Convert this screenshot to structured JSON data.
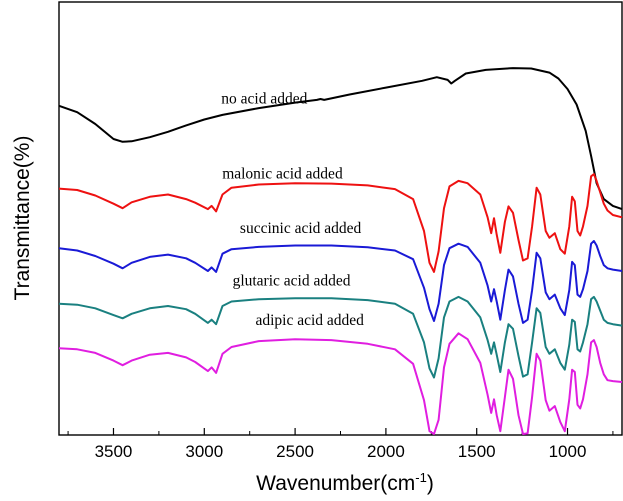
{
  "chart_data": {
    "type": "line",
    "xlabel": "Wavenumber(cm",
    "xlabel_sup": "-1",
    "xlabel_close": ")",
    "ylabel": "Transmittance(%)",
    "xlim": [
      3800,
      700
    ],
    "x_reversed": true,
    "y_ticks_shown": false,
    "grid": false,
    "xticks": [
      3500,
      3000,
      2500,
      2000,
      1500,
      1000
    ],
    "series": [
      {
        "name": "no acid added",
        "color": "#000000",
        "label_anchor_x": 3000,
        "points": [
          [
            3800,
            2.15
          ],
          [
            3700,
            2.29
          ],
          [
            3600,
            2.55
          ],
          [
            3500,
            2.88
          ],
          [
            3450,
            2.94
          ],
          [
            3400,
            2.93
          ],
          [
            3300,
            2.84
          ],
          [
            3200,
            2.72
          ],
          [
            3100,
            2.58
          ],
          [
            3000,
            2.45
          ],
          [
            2900,
            2.35
          ],
          [
            2700,
            2.2
          ],
          [
            2500,
            2.08
          ],
          [
            2380,
            2.02
          ],
          [
            2360,
            2.0
          ],
          [
            2340,
            2.02
          ],
          [
            2200,
            1.9
          ],
          [
            2000,
            1.75
          ],
          [
            1800,
            1.6
          ],
          [
            1720,
            1.52
          ],
          [
            1660,
            1.58
          ],
          [
            1640,
            1.66
          ],
          [
            1620,
            1.6
          ],
          [
            1560,
            1.44
          ],
          [
            1450,
            1.36
          ],
          [
            1300,
            1.32
          ],
          [
            1200,
            1.33
          ],
          [
            1100,
            1.42
          ],
          [
            1050,
            1.55
          ],
          [
            1000,
            1.78
          ],
          [
            950,
            2.12
          ],
          [
            900,
            2.7
          ],
          [
            870,
            3.25
          ],
          [
            840,
            3.85
          ],
          [
            800,
            4.2
          ],
          [
            750,
            4.35
          ],
          [
            700,
            4.42
          ]
        ]
      },
      {
        "name": "malonic acid added",
        "color": "#ee1111",
        "label_anchor_x": 2900,
        "points": [
          [
            3800,
            3.97
          ],
          [
            3700,
            4.0
          ],
          [
            3600,
            4.12
          ],
          [
            3500,
            4.3
          ],
          [
            3450,
            4.4
          ],
          [
            3400,
            4.27
          ],
          [
            3300,
            4.15
          ],
          [
            3200,
            4.1
          ],
          [
            3100,
            4.2
          ],
          [
            3050,
            4.28
          ],
          [
            2980,
            4.42
          ],
          [
            2960,
            4.35
          ],
          [
            2935,
            4.47
          ],
          [
            2900,
            4.1
          ],
          [
            2850,
            3.95
          ],
          [
            2700,
            3.88
          ],
          [
            2500,
            3.85
          ],
          [
            2300,
            3.86
          ],
          [
            2100,
            3.9
          ],
          [
            1950,
            3.98
          ],
          [
            1850,
            4.2
          ],
          [
            1790,
            4.9
          ],
          [
            1760,
            5.6
          ],
          [
            1735,
            5.8
          ],
          [
            1710,
            5.35
          ],
          [
            1680,
            4.4
          ],
          [
            1650,
            3.92
          ],
          [
            1600,
            3.8
          ],
          [
            1550,
            3.85
          ],
          [
            1480,
            4.1
          ],
          [
            1440,
            4.6
          ],
          [
            1420,
            4.95
          ],
          [
            1405,
            4.62
          ],
          [
            1390,
            4.98
          ],
          [
            1370,
            5.38
          ],
          [
            1345,
            4.7
          ],
          [
            1325,
            4.36
          ],
          [
            1300,
            4.5
          ],
          [
            1270,
            5.1
          ],
          [
            1245,
            5.55
          ],
          [
            1220,
            5.5
          ],
          [
            1195,
            4.8
          ],
          [
            1170,
            3.95
          ],
          [
            1150,
            4.1
          ],
          [
            1120,
            4.9
          ],
          [
            1100,
            5.05
          ],
          [
            1070,
            4.95
          ],
          [
            1040,
            5.3
          ],
          [
            1015,
            5.4
          ],
          [
            990,
            4.8
          ],
          [
            975,
            4.15
          ],
          [
            960,
            4.25
          ],
          [
            945,
            4.9
          ],
          [
            930,
            5.0
          ],
          [
            915,
            4.8
          ],
          [
            890,
            4.35
          ],
          [
            870,
            3.7
          ],
          [
            855,
            3.65
          ],
          [
            840,
            3.8
          ],
          [
            820,
            4.05
          ],
          [
            800,
            4.3
          ],
          [
            780,
            4.45
          ],
          [
            750,
            4.55
          ],
          [
            700,
            4.6
          ]
        ]
      },
      {
        "name": "succinic acid added",
        "color": "#1a1ad6",
        "label_anchor_x": 2800,
        "points": [
          [
            3800,
            5.28
          ],
          [
            3700,
            5.33
          ],
          [
            3600,
            5.45
          ],
          [
            3500,
            5.62
          ],
          [
            3450,
            5.72
          ],
          [
            3400,
            5.6
          ],
          [
            3300,
            5.47
          ],
          [
            3200,
            5.42
          ],
          [
            3100,
            5.5
          ],
          [
            3050,
            5.6
          ],
          [
            2980,
            5.78
          ],
          [
            2960,
            5.7
          ],
          [
            2935,
            5.8
          ],
          [
            2900,
            5.4
          ],
          [
            2850,
            5.3
          ],
          [
            2700,
            5.25
          ],
          [
            2500,
            5.22
          ],
          [
            2300,
            5.22
          ],
          [
            2100,
            5.26
          ],
          [
            1950,
            5.33
          ],
          [
            1850,
            5.52
          ],
          [
            1790,
            6.15
          ],
          [
            1760,
            6.62
          ],
          [
            1735,
            6.88
          ],
          [
            1710,
            6.5
          ],
          [
            1680,
            5.65
          ],
          [
            1650,
            5.28
          ],
          [
            1600,
            5.18
          ],
          [
            1550,
            5.25
          ],
          [
            1480,
            5.6
          ],
          [
            1440,
            6.1
          ],
          [
            1420,
            6.45
          ],
          [
            1405,
            6.18
          ],
          [
            1390,
            6.45
          ],
          [
            1370,
            6.85
          ],
          [
            1345,
            6.2
          ],
          [
            1325,
            5.75
          ],
          [
            1300,
            5.9
          ],
          [
            1270,
            6.5
          ],
          [
            1245,
            6.92
          ],
          [
            1220,
            6.85
          ],
          [
            1195,
            6.2
          ],
          [
            1170,
            5.38
          ],
          [
            1150,
            5.5
          ],
          [
            1120,
            6.25
          ],
          [
            1100,
            6.4
          ],
          [
            1070,
            6.3
          ],
          [
            1040,
            6.6
          ],
          [
            1015,
            6.75
          ],
          [
            990,
            6.2
          ],
          [
            975,
            5.58
          ],
          [
            960,
            5.65
          ],
          [
            945,
            6.3
          ],
          [
            930,
            6.35
          ],
          [
            915,
            6.18
          ],
          [
            890,
            5.78
          ],
          [
            870,
            5.18
          ],
          [
            855,
            5.12
          ],
          [
            840,
            5.22
          ],
          [
            820,
            5.45
          ],
          [
            800,
            5.65
          ],
          [
            780,
            5.72
          ],
          [
            750,
            5.75
          ],
          [
            700,
            5.78
          ]
        ]
      },
      {
        "name": "glutaric acid added",
        "color": "#1a8080",
        "label_anchor_x": 2850,
        "points": [
          [
            3800,
            6.5
          ],
          [
            3700,
            6.52
          ],
          [
            3600,
            6.6
          ],
          [
            3500,
            6.75
          ],
          [
            3450,
            6.82
          ],
          [
            3400,
            6.72
          ],
          [
            3300,
            6.6
          ],
          [
            3200,
            6.55
          ],
          [
            3100,
            6.62
          ],
          [
            3050,
            6.72
          ],
          [
            2980,
            6.92
          ],
          [
            2960,
            6.85
          ],
          [
            2935,
            6.95
          ],
          [
            2900,
            6.55
          ],
          [
            2850,
            6.45
          ],
          [
            2700,
            6.4
          ],
          [
            2500,
            6.38
          ],
          [
            2300,
            6.38
          ],
          [
            2100,
            6.42
          ],
          [
            1950,
            6.5
          ],
          [
            1850,
            6.72
          ],
          [
            1790,
            7.35
          ],
          [
            1760,
            7.92
          ],
          [
            1735,
            8.12
          ],
          [
            1710,
            7.7
          ],
          [
            1680,
            6.8
          ],
          [
            1650,
            6.45
          ],
          [
            1600,
            6.35
          ],
          [
            1550,
            6.45
          ],
          [
            1480,
            6.8
          ],
          [
            1440,
            7.3
          ],
          [
            1420,
            7.6
          ],
          [
            1405,
            7.35
          ],
          [
            1390,
            7.62
          ],
          [
            1370,
            8.0
          ],
          [
            1345,
            7.35
          ],
          [
            1325,
            6.95
          ],
          [
            1300,
            7.05
          ],
          [
            1270,
            7.65
          ],
          [
            1245,
            8.1
          ],
          [
            1220,
            8.05
          ],
          [
            1195,
            7.35
          ],
          [
            1170,
            6.6
          ],
          [
            1150,
            6.7
          ],
          [
            1120,
            7.45
          ],
          [
            1100,
            7.6
          ],
          [
            1070,
            7.5
          ],
          [
            1040,
            7.8
          ],
          [
            1015,
            7.95
          ],
          [
            990,
            7.4
          ],
          [
            975,
            6.85
          ],
          [
            960,
            6.9
          ],
          [
            945,
            7.5
          ],
          [
            930,
            7.55
          ],
          [
            915,
            7.35
          ],
          [
            890,
            6.95
          ],
          [
            870,
            6.4
          ],
          [
            855,
            6.35
          ],
          [
            840,
            6.45
          ],
          [
            820,
            6.65
          ],
          [
            800,
            6.85
          ],
          [
            780,
            6.92
          ],
          [
            750,
            6.95
          ],
          [
            700,
            6.98
          ]
        ]
      },
      {
        "name": "adipic acid added",
        "color": "#e01ee0",
        "label_anchor_x": 2750,
        "points": [
          [
            3800,
            7.48
          ],
          [
            3700,
            7.5
          ],
          [
            3600,
            7.58
          ],
          [
            3500,
            7.75
          ],
          [
            3450,
            7.85
          ],
          [
            3400,
            7.75
          ],
          [
            3300,
            7.62
          ],
          [
            3200,
            7.58
          ],
          [
            3100,
            7.68
          ],
          [
            3050,
            7.78
          ],
          [
            2980,
            7.98
          ],
          [
            2960,
            7.9
          ],
          [
            2935,
            8.02
          ],
          [
            2900,
            7.6
          ],
          [
            2850,
            7.45
          ],
          [
            2700,
            7.32
          ],
          [
            2500,
            7.28
          ],
          [
            2300,
            7.3
          ],
          [
            2100,
            7.38
          ],
          [
            1950,
            7.5
          ],
          [
            1850,
            7.82
          ],
          [
            1790,
            8.62
          ],
          [
            1760,
            9.3
          ],
          [
            1735,
            9.52
          ],
          [
            1710,
            9.05
          ],
          [
            1680,
            7.9
          ],
          [
            1650,
            7.38
          ],
          [
            1600,
            7.15
          ],
          [
            1550,
            7.28
          ],
          [
            1480,
            7.8
          ],
          [
            1440,
            8.5
          ],
          [
            1420,
            8.9
          ],
          [
            1405,
            8.6
          ],
          [
            1390,
            8.95
          ],
          [
            1370,
            9.3
          ],
          [
            1345,
            8.55
          ],
          [
            1325,
            7.95
          ],
          [
            1300,
            8.15
          ],
          [
            1270,
            8.95
          ],
          [
            1245,
            9.42
          ],
          [
            1220,
            9.35
          ],
          [
            1195,
            8.55
          ],
          [
            1170,
            7.6
          ],
          [
            1150,
            7.75
          ],
          [
            1120,
            8.62
          ],
          [
            1100,
            8.85
          ],
          [
            1070,
            8.75
          ],
          [
            1040,
            9.1
          ],
          [
            1015,
            9.3
          ],
          [
            990,
            8.6
          ],
          [
            975,
            7.95
          ],
          [
            960,
            8.0
          ],
          [
            945,
            8.72
          ],
          [
            930,
            8.8
          ],
          [
            915,
            8.6
          ],
          [
            890,
            8.05
          ],
          [
            870,
            7.35
          ],
          [
            855,
            7.3
          ],
          [
            840,
            7.45
          ],
          [
            820,
            7.8
          ],
          [
            800,
            8.05
          ],
          [
            780,
            8.18
          ],
          [
            750,
            8.2
          ],
          [
            700,
            8.22
          ]
        ]
      }
    ]
  }
}
